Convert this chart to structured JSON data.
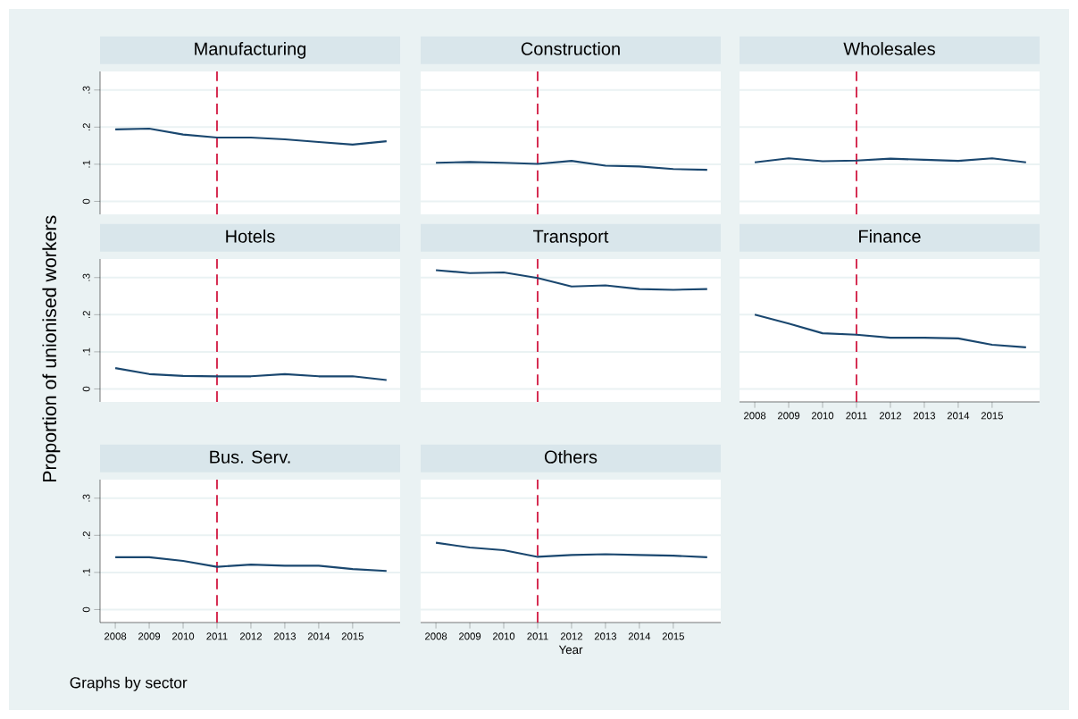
{
  "chart_data": [
    {
      "type": "line",
      "title": "Manufacturing",
      "x": [
        2008,
        2009,
        2010,
        2011,
        2012,
        2013,
        2014,
        2015,
        2016
      ],
      "xlim": [
        2007.55,
        2016.4
      ],
      "xticks": [
        2008,
        2009,
        2010,
        2011,
        2012,
        2013,
        2014,
        2015
      ],
      "ylim": [
        -0.035,
        0.35
      ],
      "yticks": [
        {
          "value": 0,
          "label": "0"
        },
        {
          "value": 0.1,
          "label": ".1"
        },
        {
          "value": 0.2,
          "label": ".2"
        },
        {
          "value": 0.3,
          "label": ".3"
        }
      ],
      "grid": "y",
      "marker": "none",
      "tick_labels": "y",
      "series": [
        {
          "color": "#1a476f",
          "values": [
            0.194,
            0.196,
            0.18,
            0.172,
            0.172,
            0.167,
            0.16,
            0.153,
            0.162
          ]
        }
      ],
      "ref_lines": [
        {
          "axis": "x",
          "value": 2011,
          "color": "#d0103a",
          "line_style": "dashed"
        }
      ]
    },
    {
      "type": "line",
      "title": "Construction",
      "x": [
        2008,
        2009,
        2010,
        2011,
        2012,
        2013,
        2014,
        2015,
        2016
      ],
      "xlim": [
        2007.55,
        2016.4
      ],
      "xticks": [
        2008,
        2009,
        2010,
        2011,
        2012,
        2013,
        2014,
        2015
      ],
      "ylim": [
        -0.035,
        0.35
      ],
      "yticks": [
        0,
        0.1,
        0.2,
        0.3
      ],
      "grid": "y",
      "marker": "none",
      "tick_labels": false,
      "series": [
        {
          "color": "#1a476f",
          "values": [
            0.104,
            0.106,
            0.104,
            0.101,
            0.109,
            0.096,
            0.094,
            0.087,
            0.085
          ]
        }
      ],
      "ref_lines": [
        {
          "axis": "x",
          "value": 2011,
          "color": "#d0103a",
          "line_style": "dashed"
        }
      ]
    },
    {
      "type": "line",
      "title": "Wholesales",
      "x": [
        2008,
        2009,
        2010,
        2011,
        2012,
        2013,
        2014,
        2015,
        2016
      ],
      "xlim": [
        2007.55,
        2016.4
      ],
      "xticks": [
        2008,
        2009,
        2010,
        2011,
        2012,
        2013,
        2014,
        2015
      ],
      "ylim": [
        -0.035,
        0.35
      ],
      "yticks": [
        0,
        0.1,
        0.2,
        0.3
      ],
      "grid": "y",
      "marker": "none",
      "tick_labels": false,
      "series": [
        {
          "color": "#1a476f",
          "values": [
            0.105,
            0.116,
            0.108,
            0.11,
            0.115,
            0.112,
            0.109,
            0.116,
            0.105
          ]
        }
      ],
      "ref_lines": [
        {
          "axis": "x",
          "value": 2011,
          "color": "#d0103a",
          "line_style": "dashed"
        }
      ]
    },
    {
      "type": "line",
      "title": "Hotels",
      "ylabel": "Proportion of unionised workers",
      "x": [
        2008,
        2009,
        2010,
        2011,
        2012,
        2013,
        2014,
        2015,
        2016
      ],
      "xlim": [
        2007.55,
        2016.4
      ],
      "xticks": [
        2008,
        2009,
        2010,
        2011,
        2012,
        2013,
        2014,
        2015
      ],
      "ylim": [
        -0.035,
        0.35
      ],
      "yticks": [
        {
          "value": 0,
          "label": "0"
        },
        {
          "value": 0.1,
          "label": ".1"
        },
        {
          "value": 0.2,
          "label": ".2"
        },
        {
          "value": 0.3,
          "label": ".3"
        }
      ],
      "grid": "y",
      "marker": "none",
      "tick_labels": "y",
      "series": [
        {
          "color": "#1a476f",
          "values": [
            0.056,
            0.04,
            0.035,
            0.034,
            0.034,
            0.04,
            0.034,
            0.034,
            0.024
          ]
        }
      ],
      "ref_lines": [
        {
          "axis": "x",
          "value": 2011,
          "color": "#d0103a",
          "line_style": "dashed"
        }
      ]
    },
    {
      "type": "line",
      "title": "Transport",
      "x": [
        2008,
        2009,
        2010,
        2011,
        2012,
        2013,
        2014,
        2015,
        2016
      ],
      "xlim": [
        2007.55,
        2016.4
      ],
      "xticks": [
        2008,
        2009,
        2010,
        2011,
        2012,
        2013,
        2014,
        2015
      ],
      "ylim": [
        -0.035,
        0.35
      ],
      "yticks": [
        0,
        0.1,
        0.2,
        0.3
      ],
      "grid": "y",
      "marker": "none",
      "tick_labels": false,
      "series": [
        {
          "color": "#1a476f",
          "values": [
            0.32,
            0.312,
            0.314,
            0.299,
            0.276,
            0.279,
            0.269,
            0.267,
            0.269
          ]
        }
      ],
      "ref_lines": [
        {
          "axis": "x",
          "value": 2011,
          "color": "#d0103a",
          "line_style": "dashed"
        }
      ]
    },
    {
      "type": "line",
      "title": "Finance",
      "x": [
        2008,
        2009,
        2010,
        2011,
        2012,
        2013,
        2014,
        2015,
        2016
      ],
      "xlim": [
        2007.55,
        2016.4
      ],
      "xticks": [
        2008,
        2009,
        2010,
        2011,
        2012,
        2013,
        2014,
        2015
      ],
      "ylim": [
        -0.035,
        0.35
      ],
      "yticks": [
        0,
        0.1,
        0.2,
        0.3
      ],
      "grid": "y",
      "marker": "none",
      "tick_labels": "x",
      "series": [
        {
          "color": "#1a476f",
          "values": [
            0.2,
            0.176,
            0.15,
            0.146,
            0.138,
            0.138,
            0.136,
            0.119,
            0.112
          ]
        }
      ],
      "ref_lines": [
        {
          "axis": "x",
          "value": 2011,
          "color": "#d0103a",
          "line_style": "dashed"
        }
      ]
    },
    {
      "type": "line",
      "title": "Bus. Serv.",
      "annotations": [
        "Graphs by sector"
      ],
      "x": [
        2008,
        2009,
        2010,
        2011,
        2012,
        2013,
        2014,
        2015,
        2016
      ],
      "xlim": [
        2007.55,
        2016.4
      ],
      "xticks": [
        2008,
        2009,
        2010,
        2011,
        2012,
        2013,
        2014,
        2015
      ],
      "ylim": [
        -0.035,
        0.35
      ],
      "yticks": [
        {
          "value": 0,
          "label": "0"
        },
        {
          "value": 0.1,
          "label": ".1"
        },
        {
          "value": 0.2,
          "label": ".2"
        },
        {
          "value": 0.3,
          "label": ".3"
        }
      ],
      "grid": "y",
      "marker": "none",
      "series": [
        {
          "color": "#1a476f",
          "values": [
            0.141,
            0.141,
            0.131,
            0.115,
            0.121,
            0.118,
            0.118,
            0.109,
            0.104
          ]
        }
      ],
      "ref_lines": [
        {
          "axis": "x",
          "value": 2011,
          "color": "#d0103a",
          "line_style": "dashed"
        }
      ]
    },
    {
      "type": "line",
      "title": "Others",
      "xlabel": "Year",
      "x": [
        2008,
        2009,
        2010,
        2011,
        2012,
        2013,
        2014,
        2015,
        2016
      ],
      "xlim": [
        2007.55,
        2016.4
      ],
      "xticks": [
        2008,
        2009,
        2010,
        2011,
        2012,
        2013,
        2014,
        2015
      ],
      "ylim": [
        -0.035,
        0.35
      ],
      "yticks": [
        0,
        0.1,
        0.2,
        0.3
      ],
      "grid": "y",
      "marker": "none",
      "tick_labels": "x",
      "series": [
        {
          "color": "#1a476f",
          "values": [
            0.18,
            0.167,
            0.16,
            0.142,
            0.147,
            0.149,
            0.147,
            0.145,
            0.141
          ]
        }
      ],
      "ref_lines": [
        {
          "axis": "x",
          "value": 2011,
          "color": "#d0103a",
          "line_style": "dashed"
        }
      ]
    }
  ]
}
